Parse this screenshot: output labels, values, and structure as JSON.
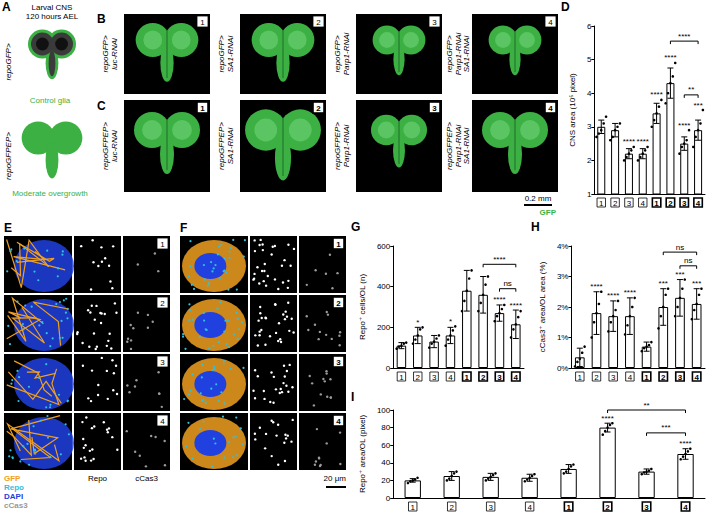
{
  "figure": {
    "panel_a": {
      "letter": "A",
      "title": [
        "Larval CNS",
        "120 hours AEL"
      ],
      "schematics": [
        {
          "genotype": "repoGFP>",
          "caption": "Control glia"
        },
        {
          "genotype": "repoGFPEP>",
          "caption": "Moderate overgrowth"
        }
      ]
    },
    "panel_b": {
      "letter": "B",
      "images": [
        {
          "number": "1",
          "genotype": [
            "repoGFP>",
            "luc-RNAi"
          ]
        },
        {
          "number": "2",
          "genotype": [
            "repoGFP>",
            "SA1-RNAi"
          ]
        },
        {
          "number": "3",
          "genotype": [
            "repoGFP>",
            "Parp1-RNAi"
          ]
        },
        {
          "number": "4",
          "genotype": [
            "repoGFP>",
            "Parp1-RNAi",
            "SA1-RNAi"
          ]
        }
      ]
    },
    "panel_c": {
      "letter": "C",
      "images": [
        {
          "number": "1",
          "genotype": [
            "repoGFPEP>",
            "luc-RNAi"
          ]
        },
        {
          "number": "2",
          "genotype": [
            "repoGFPEP>",
            "SA1-RNAi"
          ]
        },
        {
          "number": "3",
          "genotype": [
            "repoGFPEP>",
            "Parp1-RNAi"
          ]
        },
        {
          "number": "4",
          "genotype": [
            "repoGFPEP>",
            "Parp1-RNAi",
            "SA1-RNAi"
          ]
        }
      ]
    },
    "stain_bc": {
      "name": "GFP",
      "color": "#3cb043"
    },
    "scale_bar_bc": "0.2 mm",
    "panel_e": {
      "letter": "E",
      "numbers": [
        "1",
        "2",
        "3",
        "4"
      ]
    },
    "panel_f": {
      "letter": "F",
      "numbers": [
        "1",
        "2",
        "3",
        "4"
      ]
    },
    "channel_columns_ef": [
      "Repo",
      "cCas3"
    ],
    "stains_ef": [
      {
        "name": "GFP",
        "color": "#f0a020"
      },
      {
        "name": "Repo",
        "color": "#30c0e0"
      },
      {
        "name": "DAPI",
        "color": "#2040e0"
      },
      {
        "name": "cCas3",
        "color": "#999999"
      }
    ],
    "scale_bar_ef": "20 μm"
  },
  "chart_data": [
    {
      "type": "bar",
      "panel": "D",
      "y_label": "CNS area (10⁵ pixel)",
      "categories": [
        "1",
        "2",
        "3",
        "4",
        "1",
        "2",
        "3",
        "4"
      ],
      "values": [
        3.0,
        2.9,
        2.2,
        2.2,
        3.4,
        4.3,
        2.5,
        2.9
      ],
      "error": [
        0.2,
        0.2,
        0.15,
        0.15,
        0.3,
        0.45,
        0.2,
        0.3
      ],
      "points": [
        [
          2.7,
          2.8,
          2.9,
          3.1,
          3.3
        ],
        [
          2.6,
          2.7,
          2.9,
          3.0,
          3.1
        ],
        [
          2.0,
          2.1,
          2.2,
          2.3,
          2.4
        ],
        [
          2.0,
          2.1,
          2.2,
          2.3,
          2.4
        ],
        [
          3.0,
          3.2,
          3.4,
          3.6,
          3.8
        ],
        [
          3.7,
          4.0,
          4.3,
          4.5,
          4.9
        ],
        [
          2.2,
          2.4,
          2.5,
          2.6,
          2.9
        ],
        [
          2.4,
          2.7,
          2.9,
          3.1,
          3.5
        ]
      ],
      "color": "#ffffff",
      "ylim": [
        1,
        6
      ],
      "yticks": [
        1,
        2,
        3,
        4,
        5,
        6
      ],
      "grid": false,
      "annotations": [
        {
          "index": 2,
          "text": "****"
        },
        {
          "index": 3,
          "text": "****"
        },
        {
          "index": 4,
          "text": "****"
        },
        {
          "index": 5,
          "text": "****"
        },
        {
          "index": 6,
          "text": "****"
        },
        {
          "index": 7,
          "text": "***"
        }
      ],
      "comparisons": [
        {
          "from": 5,
          "to": 7,
          "y": 5.55,
          "text": "****"
        },
        {
          "from": 6,
          "to": 7,
          "y": 3.95,
          "text": "**"
        }
      ]
    },
    {
      "type": "bar",
      "panel": "G",
      "y_label": "Repo⁺ cells/OL (n)",
      "categories": [
        "1",
        "2",
        "3",
        "4",
        "1",
        "2",
        "3",
        "4"
      ],
      "values": [
        110,
        160,
        130,
        160,
        380,
        360,
        270,
        215
      ],
      "error": [
        15,
        40,
        30,
        40,
        100,
        90,
        40,
        70
      ],
      "points": [
        [
          95,
          105,
          110,
          120,
          125
        ],
        [
          120,
          140,
          160,
          190,
          200
        ],
        [
          100,
          120,
          130,
          145,
          160
        ],
        [
          110,
          140,
          160,
          185,
          205
        ],
        [
          280,
          330,
          380,
          440,
          480
        ],
        [
          280,
          320,
          360,
          410,
          450
        ],
        [
          230,
          255,
          270,
          290,
          310
        ],
        [
          150,
          190,
          215,
          250,
          280
        ]
      ],
      "color": "#ffffff",
      "ylim": [
        0,
        600
      ],
      "yticks": [
        0,
        200,
        400,
        600
      ],
      "grid": false,
      "annotations": [
        {
          "index": 1,
          "text": "*"
        },
        {
          "index": 3,
          "text": "*"
        },
        {
          "index": 6,
          "text": "****"
        },
        {
          "index": 7,
          "text": "****"
        }
      ],
      "comparisons": [
        {
          "from": 5,
          "to": 7,
          "y": 510,
          "text": "****"
        },
        {
          "from": 6,
          "to": 7,
          "y": 390,
          "text": "ns"
        }
      ]
    },
    {
      "type": "bar",
      "panel": "H",
      "y_label": "cCas3⁺ area/OL area (%)",
      "categories": [
        "1",
        "2",
        "3",
        "4",
        "1",
        "2",
        "3",
        "4"
      ],
      "values": [
        0.35,
        1.8,
        1.7,
        1.7,
        0.7,
        2.0,
        2.3,
        2.1
      ],
      "error": [
        0.3,
        0.7,
        0.5,
        0.6,
        0.15,
        0.6,
        0.6,
        0.5
      ],
      "points": [
        [
          0.05,
          0.2,
          0.3,
          0.5,
          0.7
        ],
        [
          1.0,
          1.5,
          1.8,
          2.1,
          2.5
        ],
        [
          1.2,
          1.5,
          1.7,
          1.9,
          2.2
        ],
        [
          1.1,
          1.4,
          1.7,
          2.0,
          2.3
        ],
        [
          0.55,
          0.65,
          0.7,
          0.75,
          0.85
        ],
        [
          1.3,
          1.7,
          2.0,
          2.4,
          2.6
        ],
        [
          1.7,
          2.0,
          2.3,
          2.6,
          2.9
        ],
        [
          1.6,
          1.9,
          2.1,
          2.4,
          2.6
        ]
      ],
      "color": "#ffffff",
      "ylim": [
        0,
        4
      ],
      "yticks": [
        {
          "value": 0,
          "label": "0%"
        },
        {
          "value": 1,
          "label": "1%"
        },
        {
          "value": 2,
          "label": "2%"
        },
        {
          "value": 3,
          "label": "3%"
        },
        {
          "value": 4,
          "label": "4%"
        }
      ],
      "grid": false,
      "annotations": [
        {
          "index": 1,
          "text": "****"
        },
        {
          "index": 2,
          "text": "****"
        },
        {
          "index": 3,
          "text": "****"
        },
        {
          "index": 5,
          "text": "***"
        },
        {
          "index": 6,
          "text": "***"
        },
        {
          "index": 7,
          "text": "***"
        }
      ],
      "comparisons": [
        {
          "from": 5,
          "to": 7,
          "y": 3.8,
          "text": "ns"
        },
        {
          "from": 6,
          "to": 7,
          "y": 3.35,
          "text": "ns"
        }
      ]
    },
    {
      "type": "bar",
      "panel": "I",
      "y_label": "Repo⁺ area/OL (pixel)",
      "categories": [
        "1",
        "2",
        "3",
        "4",
        "1",
        "2",
        "3",
        "4"
      ],
      "values": [
        20,
        25,
        24,
        23,
        33,
        80,
        30,
        50
      ],
      "error": [
        2,
        5,
        4,
        4,
        5,
        5,
        3,
        6
      ],
      "points": [
        [
          17,
          19,
          20,
          21,
          23
        ],
        [
          20,
          22,
          25,
          28,
          30
        ],
        [
          20,
          22,
          24,
          26,
          28
        ],
        [
          19,
          21,
          23,
          25,
          27
        ],
        [
          28,
          30,
          33,
          36,
          38
        ],
        [
          72,
          76,
          80,
          83,
          85
        ],
        [
          27,
          29,
          30,
          31,
          33
        ],
        [
          44,
          47,
          50,
          53,
          56
        ]
      ],
      "color": "#ffffff",
      "ylim": [
        0,
        100
      ],
      "yticks": [
        0,
        20,
        40,
        60,
        80,
        100
      ],
      "grid": false,
      "annotations": [
        {
          "index": 5,
          "text": "****"
        },
        {
          "index": 7,
          "text": "****"
        }
      ],
      "comparisons": [
        {
          "from": 5,
          "to": 7,
          "y": 100,
          "text": "**"
        },
        {
          "from": 6,
          "to": 7,
          "y": 74,
          "text": "***"
        }
      ]
    }
  ]
}
